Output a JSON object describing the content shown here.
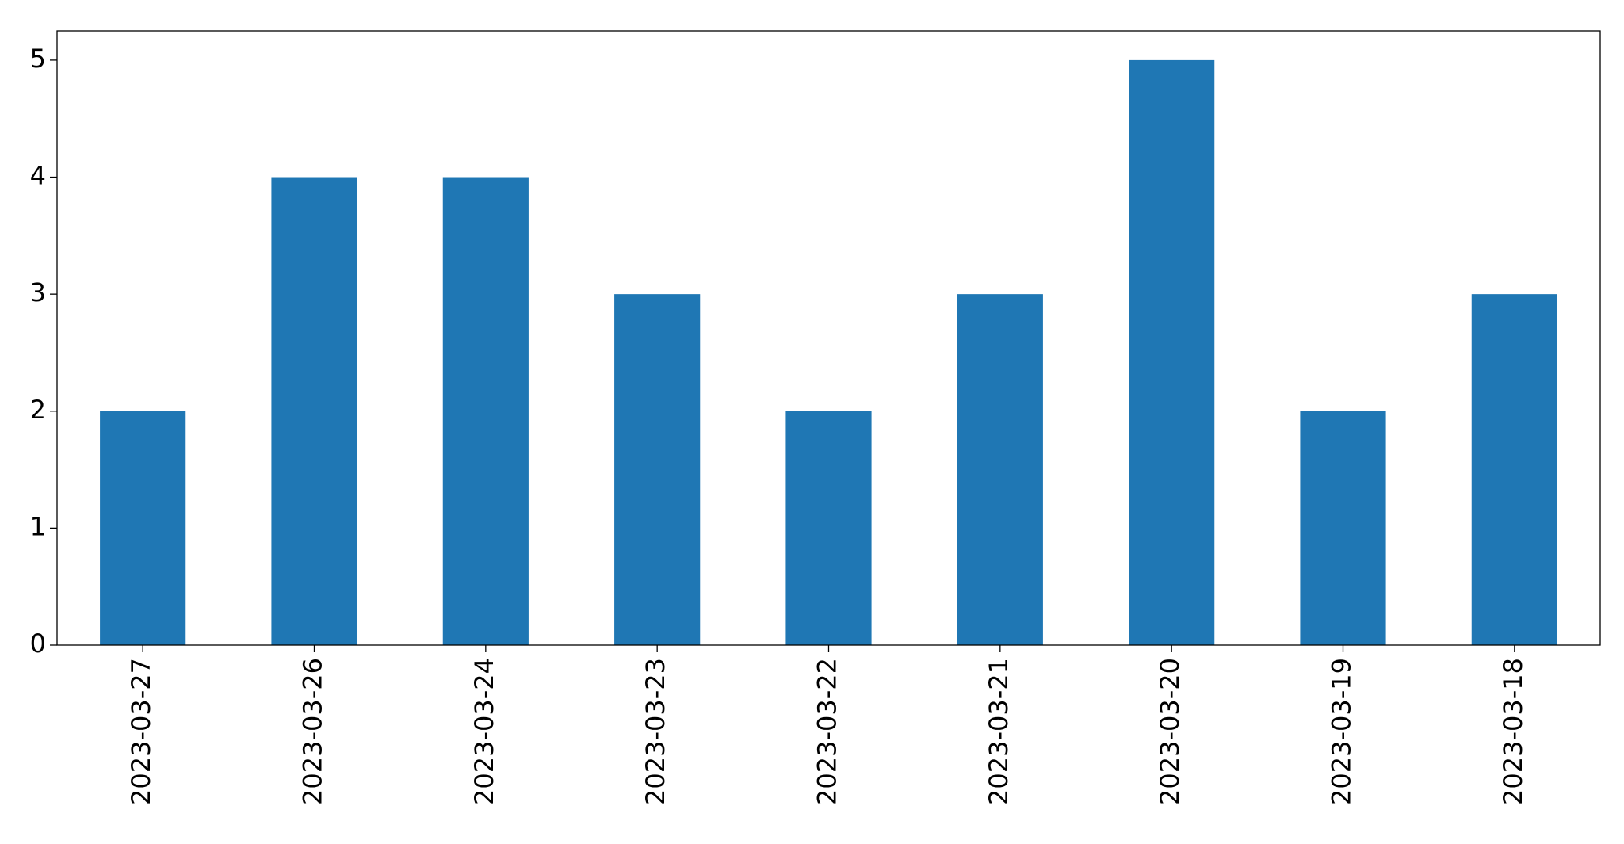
{
  "chart_data": {
    "type": "bar",
    "categories": [
      "2023-03-27",
      "2023-03-26",
      "2023-03-24",
      "2023-03-23",
      "2023-03-22",
      "2023-03-21",
      "2023-03-20",
      "2023-03-19",
      "2023-03-18"
    ],
    "values": [
      2,
      4,
      4,
      3,
      2,
      3,
      5,
      2,
      3
    ],
    "color": "#1f77b4",
    "ylim": [
      0,
      5.25
    ],
    "yticks": [
      0,
      1,
      2,
      3,
      4,
      5
    ],
    "grid": false
  }
}
